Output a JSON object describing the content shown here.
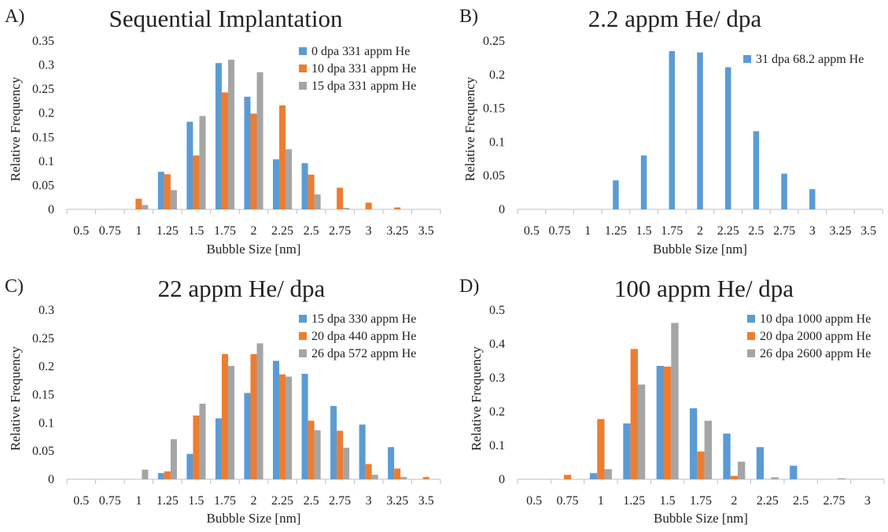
{
  "charts": [
    {
      "letter": "A)",
      "chart_data": {
        "type": "bar",
        "title": "Sequential Implantation",
        "xlabel": "Bubble Size [nm]",
        "ylabel": "Relative Frequency",
        "categories": [
          "0.5",
          "0.75",
          "1",
          "1.25",
          "1.5",
          "1.75",
          "2",
          "2.25",
          "2.5",
          "2.75",
          "3",
          "3.25",
          "3.5"
        ],
        "ylim": [
          0,
          0.35
        ],
        "yticks": [
          "0",
          "0.05",
          "0.1",
          "0.15",
          "0.2",
          "0.25",
          "0.3",
          "0.35"
        ],
        "legend_position": "top-right",
        "grid": false,
        "series": [
          {
            "name": "0 dpa 331 appm He",
            "color": "#5B9BD5",
            "values": [
              0,
              0,
              0,
              0.078,
              0.182,
              0.304,
              0.234,
              0.104,
              0.096,
              0,
              0,
              0,
              0
            ]
          },
          {
            "name": "10 dpa 331 appm He",
            "color": "#ED7D31",
            "values": [
              0,
              0,
              0.022,
              0.073,
              0.112,
              0.243,
              0.199,
              0.216,
              0.072,
              0.045,
              0.014,
              0.004,
              0
            ]
          },
          {
            "name": "15 dpa 331 appm He",
            "color": "#A5A5A5",
            "values": [
              0,
              0,
              0.009,
              0.04,
              0.194,
              0.311,
              0.285,
              0.125,
              0.031,
              0.003,
              0,
              0,
              0
            ]
          }
        ]
      }
    },
    {
      "letter": "B)",
      "chart_data": {
        "type": "bar",
        "title": "2.2 appm He/ dpa",
        "xlabel": "Bubble Size [nm]",
        "ylabel": "Relative Frequency",
        "categories": [
          "0.5",
          "0.75",
          "1",
          "1.25",
          "1.5",
          "1.75",
          "2",
          "2.25",
          "2.5",
          "2.75",
          "3",
          "3.25",
          "3.5"
        ],
        "ylim": [
          0,
          0.25
        ],
        "yticks": [
          "0",
          "0.05",
          "0.1",
          "0.15",
          "0.2",
          "0.25"
        ],
        "legend_position": "top-right",
        "grid": false,
        "series": [
          {
            "name": "31 dpa 68.2 appm He",
            "color": "#5B9BD5",
            "values": [
              0,
              0,
              0,
              0.043,
              0.08,
              0.235,
              0.233,
              0.211,
              0.116,
              0.053,
              0.03,
              0,
              0
            ]
          }
        ]
      }
    },
    {
      "letter": "C)",
      "chart_data": {
        "type": "bar",
        "title": "22 appm He/ dpa",
        "xlabel": "Bubble Size [nm]",
        "ylabel": "Relative Frequency",
        "categories": [
          "0.5",
          "0.75",
          "1",
          "1.25",
          "1.5",
          "1.75",
          "2",
          "2.25",
          "2.5",
          "2.75",
          "3",
          "3.25",
          "3.5"
        ],
        "ylim": [
          0,
          0.3
        ],
        "yticks": [
          "0",
          "0.05",
          "0.1",
          "0.15",
          "0.2",
          "0.25",
          "0.3"
        ],
        "legend_position": "top-right",
        "grid": false,
        "series": [
          {
            "name": "15 dpa 330 appm He",
            "color": "#5B9BD5",
            "values": [
              0,
              0,
              0,
              0.011,
              0.045,
              0.108,
              0.153,
              0.21,
              0.187,
              0.13,
              0.097,
              0.057,
              0
            ]
          },
          {
            "name": "20 dpa 440 appm He",
            "color": "#ED7D31",
            "values": [
              0,
              0,
              0,
              0.014,
              0.113,
              0.222,
              0.222,
              0.186,
              0.104,
              0.086,
              0.027,
              0.019,
              0.004
            ]
          },
          {
            "name": "26 dpa 572 appm He",
            "color": "#A5A5A5",
            "values": [
              0,
              0,
              0.017,
              0.071,
              0.134,
              0.201,
              0.241,
              0.182,
              0.087,
              0.056,
              0.008,
              0.004,
              0
            ]
          }
        ]
      }
    },
    {
      "letter": "D)",
      "chart_data": {
        "type": "bar",
        "title": "100 appm He/ dpa",
        "xlabel": "Bubble Size [nm]",
        "ylabel": "Relative Frequency",
        "categories": [
          "0.5",
          "0.75",
          "1",
          "1.25",
          "1.5",
          "1.75",
          "2",
          "2.25",
          "2.5",
          "2.75",
          "3"
        ],
        "ylim": [
          0,
          0.5
        ],
        "yticks": [
          "0",
          "0.1",
          "0.2",
          "0.3",
          "0.4",
          "0.5"
        ],
        "legend_position": "top-right",
        "grid": false,
        "series": [
          {
            "name": "10 dpa 1000 appm He",
            "color": "#5B9BD5",
            "values": [
              0,
              0,
              0.018,
              0.165,
              0.335,
              0.21,
              0.135,
              0.095,
              0.04,
              0,
              0
            ]
          },
          {
            "name": "20 dpa 2000 appm He",
            "color": "#ED7D31",
            "values": [
              0,
              0.013,
              0.178,
              0.385,
              0.333,
              0.082,
              0.01,
              0,
              0,
              0,
              0
            ]
          },
          {
            "name": "26 dpa 2600 appm He",
            "color": "#A5A5A5",
            "values": [
              0,
              0,
              0.03,
              0.28,
              0.462,
              0.173,
              0.052,
              0.006,
              0,
              0.003,
              0
            ]
          }
        ]
      }
    }
  ]
}
